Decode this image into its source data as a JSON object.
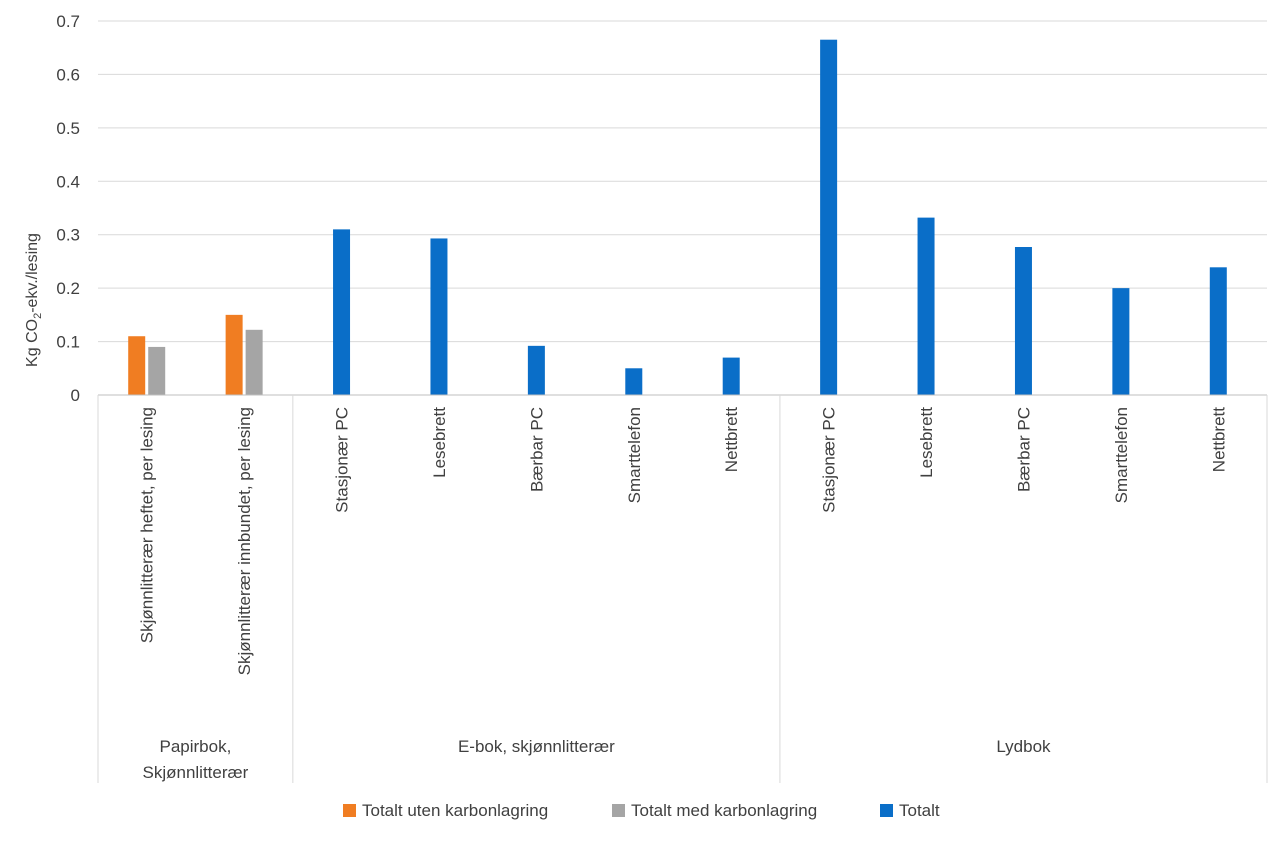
{
  "chart_data": {
    "type": "bar",
    "title": "",
    "xlabel": "",
    "ylabel": {
      "prefix": "Kg CO",
      "subscript": "2",
      "suffix": "-ekv./lesing"
    },
    "ylim": [
      0,
      0.7
    ],
    "yticks": [
      "0",
      "0.1",
      "0.2",
      "0.3",
      "0.4",
      "0.5",
      "0.6",
      "0.7"
    ],
    "grid": true,
    "legend_position": "bottom",
    "series": [
      {
        "name": "Totalt uten karbonlagring",
        "color": "#f07d22"
      },
      {
        "name": "Totalt med karbonlagring",
        "color": "#a5a5a5"
      },
      {
        "name": "Totalt",
        "color": "#0a6ec8"
      }
    ],
    "groups": [
      {
        "label_lines": [
          "Papirbok,",
          "Skjønnlitterær"
        ],
        "categories": [
          {
            "label": "Skjønnlitterær heftet, per lesing",
            "values": [
              0.11,
              0.09,
              null
            ]
          },
          {
            "label": "Skjønnlitterær innbundet, per lesing",
            "values": [
              0.15,
              0.122,
              null
            ]
          }
        ]
      },
      {
        "label_lines": [
          "E-bok, skjønnlitterær"
        ],
        "categories": [
          {
            "label": "Stasjonær PC",
            "values": [
              null,
              null,
              0.31
            ]
          },
          {
            "label": "Lesebrett",
            "values": [
              null,
              null,
              0.293
            ]
          },
          {
            "label": "Bærbar PC",
            "values": [
              null,
              null,
              0.092
            ]
          },
          {
            "label": "Smarttelefon",
            "values": [
              null,
              null,
              0.05
            ]
          },
          {
            "label": "Nettbrett",
            "values": [
              null,
              null,
              0.07
            ]
          }
        ]
      },
      {
        "label_lines": [
          "Lydbok"
        ],
        "categories": [
          {
            "label": "Stasjonær PC",
            "values": [
              null,
              null,
              0.665
            ]
          },
          {
            "label": "Lesebrett",
            "values": [
              null,
              null,
              0.332
            ]
          },
          {
            "label": "Bærbar PC",
            "values": [
              null,
              null,
              0.277
            ]
          },
          {
            "label": "Smarttelefon",
            "values": [
              null,
              null,
              0.2
            ]
          },
          {
            "label": "Nettbrett",
            "values": [
              null,
              null,
              0.239
            ]
          }
        ]
      }
    ]
  }
}
